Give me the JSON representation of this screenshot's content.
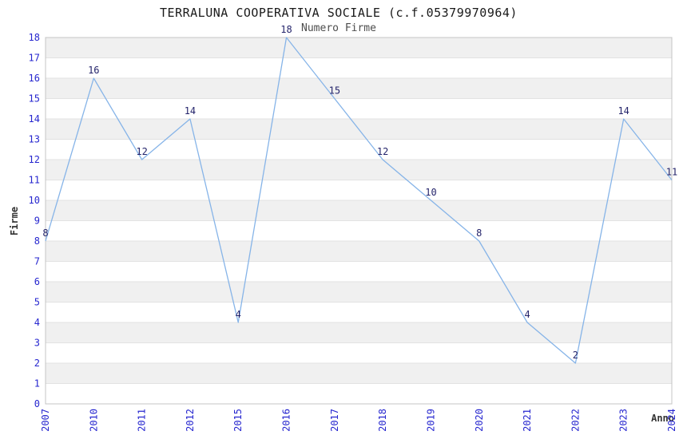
{
  "page": {
    "background": "#ffffff"
  },
  "chart_data": {
    "type": "line",
    "title": "TERRALUNA COOPERATIVA SOCIALE (c.f.05379970964)",
    "subtitle": "Numero Firme",
    "xlabel": "Anno",
    "ylabel": "Firme",
    "categories": [
      "2007",
      "2010",
      "2011",
      "2012",
      "2015",
      "2016",
      "2017",
      "2018",
      "2019",
      "2020",
      "2021",
      "2022",
      "2023",
      "2024"
    ],
    "values": [
      8,
      16,
      12,
      14,
      4,
      18,
      15,
      12,
      10,
      8,
      4,
      2,
      14,
      11
    ],
    "ylim": [
      0,
      18
    ],
    "ytick_step": 1,
    "grid": "alternating-horizontal-bands",
    "legend": "none",
    "point_labels_visible": true,
    "x_tick_rotation_deg": -90,
    "colors": {
      "line": "#86b4e8",
      "tick_label": "#2626cf",
      "point_label": "#24246b",
      "band_fill": "#f0f0f0",
      "band_edge": "#e2e2e2",
      "plot_border": "#c4c4c4",
      "title": "#1a1a1a",
      "subtitle": "#4d4d4d",
      "axis_label": "#333333"
    }
  }
}
